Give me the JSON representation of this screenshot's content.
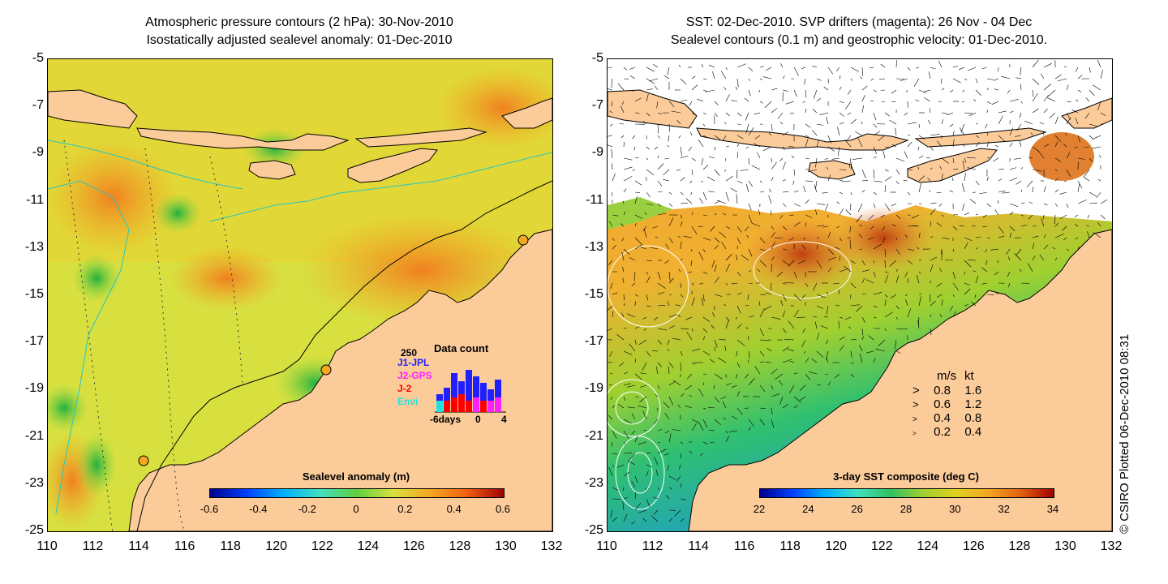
{
  "left_panel": {
    "title_line1": "Atmospheric pressure contours (2 hPa): 30-Nov-2010",
    "title_line2": "Isostatically adjusted sealevel anomaly: 01-Dec-2010",
    "colorbar": {
      "label": "Sealevel anomaly (m)",
      "ticks": [
        "-0.6",
        "-0.4",
        "-0.2",
        "0",
        "0.2",
        "0.4",
        "0.6"
      ]
    },
    "data_count": {
      "title": "Data count",
      "max_label": "250",
      "series": [
        {
          "name": "J1-JPL",
          "color": "#2020ff"
        },
        {
          "name": "J2-GPS",
          "color": "#ff20ff"
        },
        {
          "name": "J-2",
          "color": "#ff0000"
        },
        {
          "name": "Envi",
          "color": "#20e0e0"
        }
      ],
      "x_labels": [
        "-6days",
        "0",
        "4"
      ]
    }
  },
  "right_panel": {
    "title_line1": "SST: 02-Dec-2010. SVP drifters (magenta): 26 Nov - 04 Dec",
    "title_line2": "Sealevel contours (0.1 m) and geostrophic velocity: 01-Dec-2010.",
    "colorbar": {
      "label": "3-day SST composite (deg C)",
      "ticks": [
        "22",
        "24",
        "26",
        "28",
        "30",
        "32",
        "34"
      ]
    },
    "velocity_legend": {
      "header_ms": "m/s",
      "header_kt": "kt",
      "rows": [
        {
          "ms": "0.8",
          "kt": "1.6"
        },
        {
          "ms": "0.6",
          "kt": "1.2"
        },
        {
          "ms": "0.4",
          "kt": "0.8"
        },
        {
          "ms": "0.2",
          "kt": "0.4"
        }
      ]
    }
  },
  "axes": {
    "y_ticks": [
      "-5",
      "-7",
      "-9",
      "-11",
      "-13",
      "-15",
      "-17",
      "-19",
      "-21",
      "-23",
      "-25"
    ],
    "x_ticks": [
      "110",
      "112",
      "114",
      "116",
      "118",
      "120",
      "122",
      "124",
      "126",
      "128",
      "130",
      "132"
    ]
  },
  "credit": "© CSIRO Plotted 06-Dec-2010 08:31",
  "colors": {
    "land": "#fccb9a",
    "sea_orange": "#f5a623",
    "sea_yellowgreen": "#c8e63c",
    "sea_green": "#4cc84c",
    "contour_cyan": "#20c8c8"
  }
}
